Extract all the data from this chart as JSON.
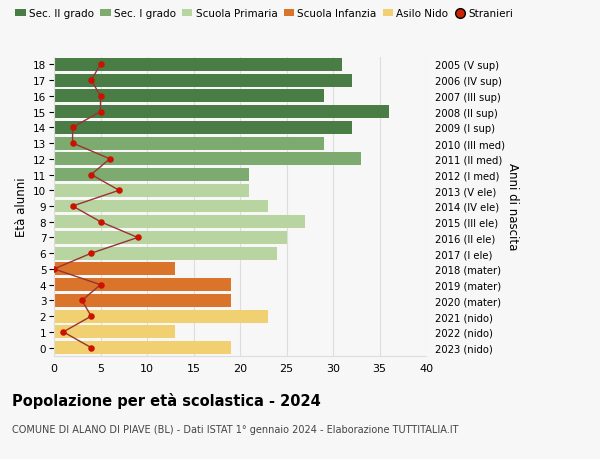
{
  "ages": [
    18,
    17,
    16,
    15,
    14,
    13,
    12,
    11,
    10,
    9,
    8,
    7,
    6,
    5,
    4,
    3,
    2,
    1,
    0
  ],
  "right_labels": [
    "2005 (V sup)",
    "2006 (IV sup)",
    "2007 (III sup)",
    "2008 (II sup)",
    "2009 (I sup)",
    "2010 (III med)",
    "2011 (II med)",
    "2012 (I med)",
    "2013 (V ele)",
    "2014 (IV ele)",
    "2015 (III ele)",
    "2016 (II ele)",
    "2017 (I ele)",
    "2018 (mater)",
    "2019 (mater)",
    "2020 (mater)",
    "2021 (nido)",
    "2022 (nido)",
    "2023 (nido)"
  ],
  "bar_values": [
    31,
    32,
    29,
    36,
    32,
    29,
    33,
    21,
    21,
    23,
    27,
    25,
    24,
    13,
    19,
    19,
    23,
    13,
    19
  ],
  "bar_colors": [
    "#4a7c45",
    "#4a7c45",
    "#4a7c45",
    "#4a7c45",
    "#4a7c45",
    "#7daa6e",
    "#7daa6e",
    "#7daa6e",
    "#b8d4a0",
    "#b8d4a0",
    "#b8d4a0",
    "#b8d4a0",
    "#b8d4a0",
    "#d9742a",
    "#d9742a",
    "#d9742a",
    "#f0d070",
    "#f0d070",
    "#f0d070"
  ],
  "stranieri_values": [
    5,
    4,
    5,
    5,
    2,
    2,
    6,
    4,
    7,
    2,
    5,
    9,
    4,
    0,
    5,
    3,
    4,
    1,
    4
  ],
  "legend_labels": [
    "Sec. II grado",
    "Sec. I grado",
    "Scuola Primaria",
    "Scuola Infanzia",
    "Asilo Nido",
    "Stranieri"
  ],
  "legend_colors": [
    "#4a7c45",
    "#7daa6e",
    "#b8d4a0",
    "#d9742a",
    "#f0d070",
    "#cc2200"
  ],
  "title": "Popolazione per età scolastica - 2024",
  "subtitle": "COMUNE DI ALANO DI PIAVE (BL) - Dati ISTAT 1° gennaio 2024 - Elaborazione TUTTITALIA.IT",
  "ylabel_left": "Età alunni",
  "ylabel_right": "Anni di nascita",
  "xlim": [
    0,
    40
  ],
  "bg_color": "#f7f7f7",
  "grid_color": "#dddddd",
  "stranieri_line_color": "#993333",
  "stranieri_dot_color": "#cc1100"
}
